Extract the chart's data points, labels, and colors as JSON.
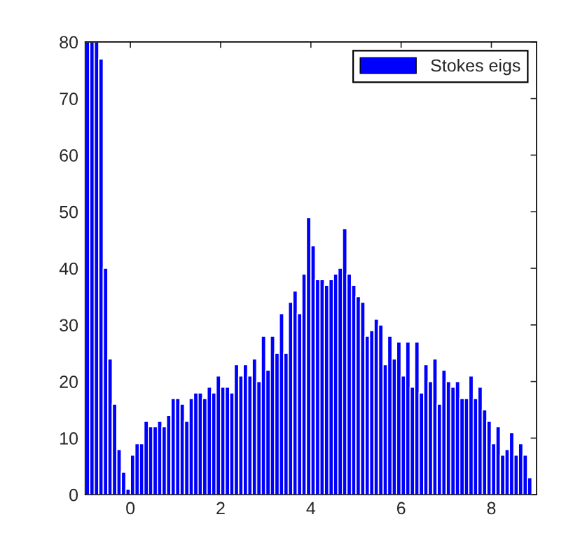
{
  "chart_data": {
    "type": "histogram",
    "bins": [
      -1.0,
      -0.9,
      -0.8,
      -0.7,
      -0.6,
      -0.5,
      -0.4,
      -0.3,
      -0.2,
      -0.1,
      0.0,
      0.1,
      0.2,
      0.3,
      0.4,
      0.5,
      0.6,
      0.7,
      0.8,
      0.9,
      1.0,
      1.1,
      1.2,
      1.3,
      1.4,
      1.5,
      1.6,
      1.7,
      1.8,
      1.9,
      2.0,
      2.1,
      2.2,
      2.3,
      2.4,
      2.5,
      2.6,
      2.7,
      2.8,
      2.9,
      3.0,
      3.1,
      3.2,
      3.3,
      3.4,
      3.5,
      3.6,
      3.7,
      3.8,
      3.9,
      4.0,
      4.1,
      4.2,
      4.3,
      4.4,
      4.5,
      4.6,
      4.7,
      4.8,
      4.9,
      5.0,
      5.1,
      5.2,
      5.3,
      5.4,
      5.5,
      5.6,
      5.7,
      5.8,
      5.9,
      6.0,
      6.1,
      6.2,
      6.3,
      6.4,
      6.5,
      6.6,
      6.7,
      6.8,
      6.9,
      7.0,
      7.1,
      7.2,
      7.3,
      7.4,
      7.5,
      7.6,
      7.7,
      7.8,
      7.9,
      8.0,
      8.1,
      8.2,
      8.3,
      8.4,
      8.5,
      8.6,
      8.7,
      8.8,
      8.9
    ],
    "series": [
      {
        "name": "Stokes eigs",
        "color": "#0000ff",
        "values": [
          80,
          80,
          80,
          77,
          40,
          24,
          16,
          8,
          4,
          1,
          7,
          9,
          9,
          13,
          12,
          12,
          13,
          12,
          14,
          17,
          17,
          16,
          13,
          17,
          18,
          18,
          17,
          19,
          18,
          21,
          19,
          19,
          18,
          23,
          21,
          23,
          21,
          24,
          20,
          28,
          22,
          28,
          25,
          32,
          25,
          34,
          36,
          32,
          39,
          49,
          44,
          38,
          38,
          37,
          38,
          39,
          40,
          47,
          39,
          37,
          35,
          34,
          28,
          29,
          31,
          30,
          23,
          28,
          24,
          27,
          21,
          27,
          19,
          27,
          18,
          23,
          20,
          24,
          16,
          22,
          20,
          19,
          20,
          17,
          17,
          21,
          17,
          19,
          15,
          13,
          9,
          12,
          7,
          8,
          11,
          7,
          9,
          7,
          3
        ]
      }
    ],
    "xlim": [
      -1,
      9
    ],
    "xticks": [
      0,
      2,
      4,
      6,
      8
    ],
    "ylim": [
      0,
      80
    ],
    "yticks": [
      0,
      10,
      20,
      30,
      40,
      50,
      60,
      70,
      80
    ],
    "legend": "top right",
    "grid": false
  }
}
